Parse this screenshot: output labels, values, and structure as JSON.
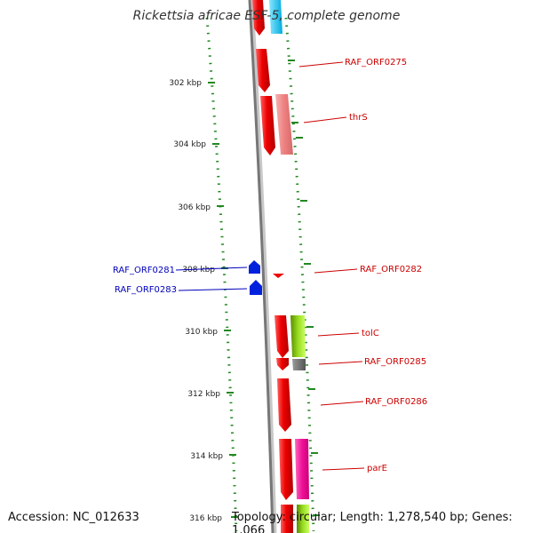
{
  "title": "Rickettsia africae ESF-5, complete genome",
  "accession": "Accession: NC_012633",
  "footer": "Topology: circular; Length: 1,278,540 bp; Genes: 1,066",
  "ticks": [
    {
      "label": "302 kbp"
    },
    {
      "label": "304 kbp"
    },
    {
      "label": "306 kbp"
    },
    {
      "label": "308 kbp"
    },
    {
      "label": "310 kbp"
    },
    {
      "label": "312 kbp"
    },
    {
      "label": "314 kbp"
    },
    {
      "label": "316 kbp"
    }
  ],
  "genes_forward": [
    {
      "label": "RAF_ORF0275"
    },
    {
      "label": "thrS"
    },
    {
      "label": "RAF_ORF0282"
    },
    {
      "label": "tolC"
    },
    {
      "label": "RAF_ORF0285"
    },
    {
      "label": "RAF_ORF0286"
    },
    {
      "label": "parE"
    }
  ],
  "genes_reverse": [
    {
      "label": "RAF_ORF0281"
    },
    {
      "label": "RAF_ORF0283"
    }
  ],
  "colors": {
    "forward_gene": "#ee0000",
    "reverse_gene": "#0000dd",
    "forward_label": "#cc0000",
    "reverse_label": "#0000bb",
    "tick": "#228822",
    "backbone": "#888888"
  }
}
